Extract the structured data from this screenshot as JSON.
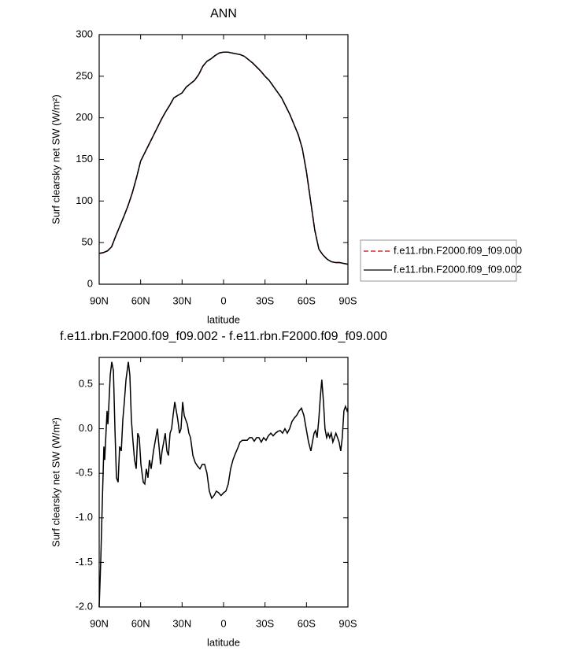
{
  "chart_data": [
    {
      "type": "line",
      "title": "ANN",
      "xlabel": "latitude",
      "ylabel": "Surf clearsky net SW (W/m²)",
      "x": [
        90,
        87,
        84,
        81,
        78,
        75,
        72,
        69,
        66,
        63,
        60,
        57,
        54,
        51,
        48,
        45,
        42,
        39,
        36,
        33,
        30,
        27,
        24,
        21,
        18,
        15,
        12,
        9,
        6,
        3,
        0,
        -3,
        -6,
        -9,
        -12,
        -15,
        -18,
        -21,
        -24,
        -27,
        -30,
        -33,
        -36,
        -39,
        -42,
        -45,
        -48,
        -51,
        -54,
        -57,
        -60,
        -63,
        -66,
        -69,
        -72,
        -75,
        -78,
        -81,
        -84,
        -87,
        -90
      ],
      "series": [
        {
          "name": "f.e11.rbn.F2000.f09_f09.000",
          "color": "#cc0000",
          "dash": true,
          "values": [
            37,
            38,
            40,
            45,
            58,
            70,
            82,
            95,
            110,
            128,
            148,
            158,
            168,
            178,
            188,
            198,
            207,
            215,
            224,
            227,
            230,
            237,
            241,
            245,
            252,
            262,
            268,
            271,
            275,
            278,
            279,
            279,
            278,
            277,
            276,
            274,
            270,
            266,
            261,
            256,
            250,
            245,
            238,
            231,
            224,
            214,
            204,
            192,
            180,
            163,
            135,
            100,
            65,
            42,
            35,
            30,
            27,
            26,
            26,
            25,
            24
          ]
        },
        {
          "name": "f.e11.rbn.F2000.f09_f09.002",
          "color": "#000000",
          "dash": false,
          "values": [
            37,
            38,
            40,
            45,
            58,
            70,
            82,
            95,
            110,
            128,
            148,
            158,
            168,
            178,
            188,
            198,
            207,
            215,
            224,
            227,
            230,
            237,
            241,
            245,
            252,
            262,
            268,
            271,
            275,
            278,
            279,
            279,
            278,
            277,
            276,
            274,
            270,
            266,
            261,
            256,
            250,
            245,
            238,
            231,
            224,
            214,
            204,
            192,
            180,
            163,
            135,
            100,
            65,
            42,
            35,
            30,
            27,
            26,
            26,
            25,
            24
          ]
        }
      ],
      "xlim": [
        90,
        -90
      ],
      "xticks": [
        {
          "value": 90,
          "label": "90N"
        },
        {
          "value": 60,
          "label": "60N"
        },
        {
          "value": 30,
          "label": "30N"
        },
        0,
        {
          "value": -30,
          "label": "30S"
        },
        {
          "value": -60,
          "label": "60S"
        },
        {
          "value": -90,
          "label": "90S"
        }
      ],
      "ylim": [
        0,
        300
      ],
      "yticks": [
        0,
        50,
        100,
        150,
        200,
        250,
        300
      ],
      "legend": "right"
    },
    {
      "type": "line",
      "title": "f.e11.rbn.F2000.f09_f09.002 - f.e11.rbn.F2000.f09_f09.000",
      "xlabel": "latitude",
      "ylabel": "Surf clearsky net SW (W/m²)",
      "x": [
        90,
        88.9,
        87.7,
        86.6,
        86,
        85.4,
        84.3,
        83.7,
        83.2,
        82,
        80.9,
        79.7,
        78.6,
        77.5,
        76.3,
        75.2,
        74,
        72.9,
        71.8,
        70.6,
        68.9,
        67.8,
        66.7,
        65.5,
        64.4,
        63.2,
        62.1,
        61,
        59.8,
        58.1,
        57,
        55.9,
        54.7,
        53.6,
        52.4,
        50.7,
        49,
        47.9,
        46.7,
        45.6,
        44.5,
        43.3,
        42.2,
        41,
        39.9,
        38.7,
        37.6,
        36.5,
        35.3,
        34.2,
        33.1,
        31.9,
        30.8,
        29.6,
        28.5,
        27.4,
        26.2,
        25.1,
        23.9,
        22.2,
        20.5,
        18.8,
        17.1,
        15.4,
        13.7,
        12,
        10.3,
        8.6,
        6.9,
        5.2,
        3.5,
        1.8,
        0.1,
        -1.7,
        -3.4,
        -5.1,
        -6.8,
        -8.5,
        -10.2,
        -11.9,
        -13.6,
        -15.4,
        -17.1,
        -18.8,
        -20.5,
        -22.2,
        -23.9,
        -25.6,
        -27.3,
        -29,
        -30.7,
        -32.4,
        -34.2,
        -35.9,
        -37.6,
        -39.3,
        -41,
        -42.7,
        -44.4,
        -46.1,
        -47.8,
        -49.5,
        -51.2,
        -52.9,
        -54.7,
        -56.4,
        -58.1,
        -59.8,
        -61.5,
        -63.2,
        -64.3,
        -65.5,
        -66.6,
        -67.7,
        -68.9,
        -70,
        -71.1,
        -72.3,
        -73.4,
        -74.6,
        -75.7,
        -76.8,
        -77.9,
        -79.1,
        -80.2,
        -81.3,
        -82.5,
        -83.6,
        -84.8,
        -85.9,
        -87.1,
        -88.2,
        -89.4,
        -90
      ],
      "series": [
        {
          "color": "#000000",
          "values": [
            -2.0,
            -1.5,
            -0.8,
            -0.2,
            -0.35,
            -0.15,
            0.2,
            0.05,
            0.2,
            0.6,
            0.75,
            0.65,
            0.0,
            -0.55,
            -0.6,
            -0.2,
            -0.25,
            0.1,
            0.3,
            0.55,
            0.75,
            0.6,
            0.1,
            -0.15,
            -0.35,
            -0.45,
            -0.05,
            -0.1,
            -0.4,
            -0.6,
            -0.62,
            -0.45,
            -0.55,
            -0.35,
            -0.45,
            -0.25,
            -0.1,
            0.0,
            -0.2,
            -0.4,
            -0.25,
            -0.15,
            -0.05,
            -0.25,
            -0.3,
            -0.05,
            0.0,
            0.15,
            0.3,
            0.2,
            0.1,
            -0.05,
            0.0,
            0.3,
            0.15,
            0.1,
            0.05,
            -0.05,
            -0.1,
            -0.3,
            -0.38,
            -0.42,
            -0.45,
            -0.4,
            -0.4,
            -0.5,
            -0.7,
            -0.78,
            -0.75,
            -0.7,
            -0.72,
            -0.75,
            -0.72,
            -0.7,
            -0.62,
            -0.45,
            -0.35,
            -0.28,
            -0.22,
            -0.15,
            -0.13,
            -0.13,
            -0.13,
            -0.1,
            -0.1,
            -0.14,
            -0.1,
            -0.1,
            -0.15,
            -0.1,
            -0.13,
            -0.08,
            -0.05,
            -0.08,
            -0.05,
            -0.03,
            -0.02,
            -0.05,
            0.0,
            -0.05,
            0.0,
            0.08,
            0.12,
            0.15,
            0.2,
            0.23,
            0.15,
            0.0,
            -0.15,
            -0.25,
            -0.15,
            -0.05,
            -0.02,
            -0.1,
            0.1,
            0.35,
            0.55,
            0.3,
            0.0,
            -0.1,
            -0.05,
            -0.1,
            -0.05,
            -0.15,
            -0.1,
            -0.05,
            -0.1,
            -0.15,
            -0.25,
            -0.1,
            0.2,
            0.25,
            0.2,
            0.23
          ]
        }
      ],
      "xlim": [
        90,
        -90
      ],
      "xticks": [
        {
          "value": 90,
          "label": "90N"
        },
        {
          "value": 60,
          "label": "60N"
        },
        {
          "value": 30,
          "label": "30N"
        },
        0,
        {
          "value": -30,
          "label": "30S"
        },
        {
          "value": -60,
          "label": "60S"
        },
        {
          "value": -90,
          "label": "90S"
        }
      ],
      "ylim": [
        -2.0,
        0.8
      ],
      "yticks": [
        {
          "value": -2.0,
          "label": "-2.0"
        },
        -1.5,
        {
          "value": -1.0,
          "label": "-1.0"
        },
        -0.5,
        {
          "value": 0,
          "label": "0.0"
        },
        0.5
      ]
    }
  ]
}
